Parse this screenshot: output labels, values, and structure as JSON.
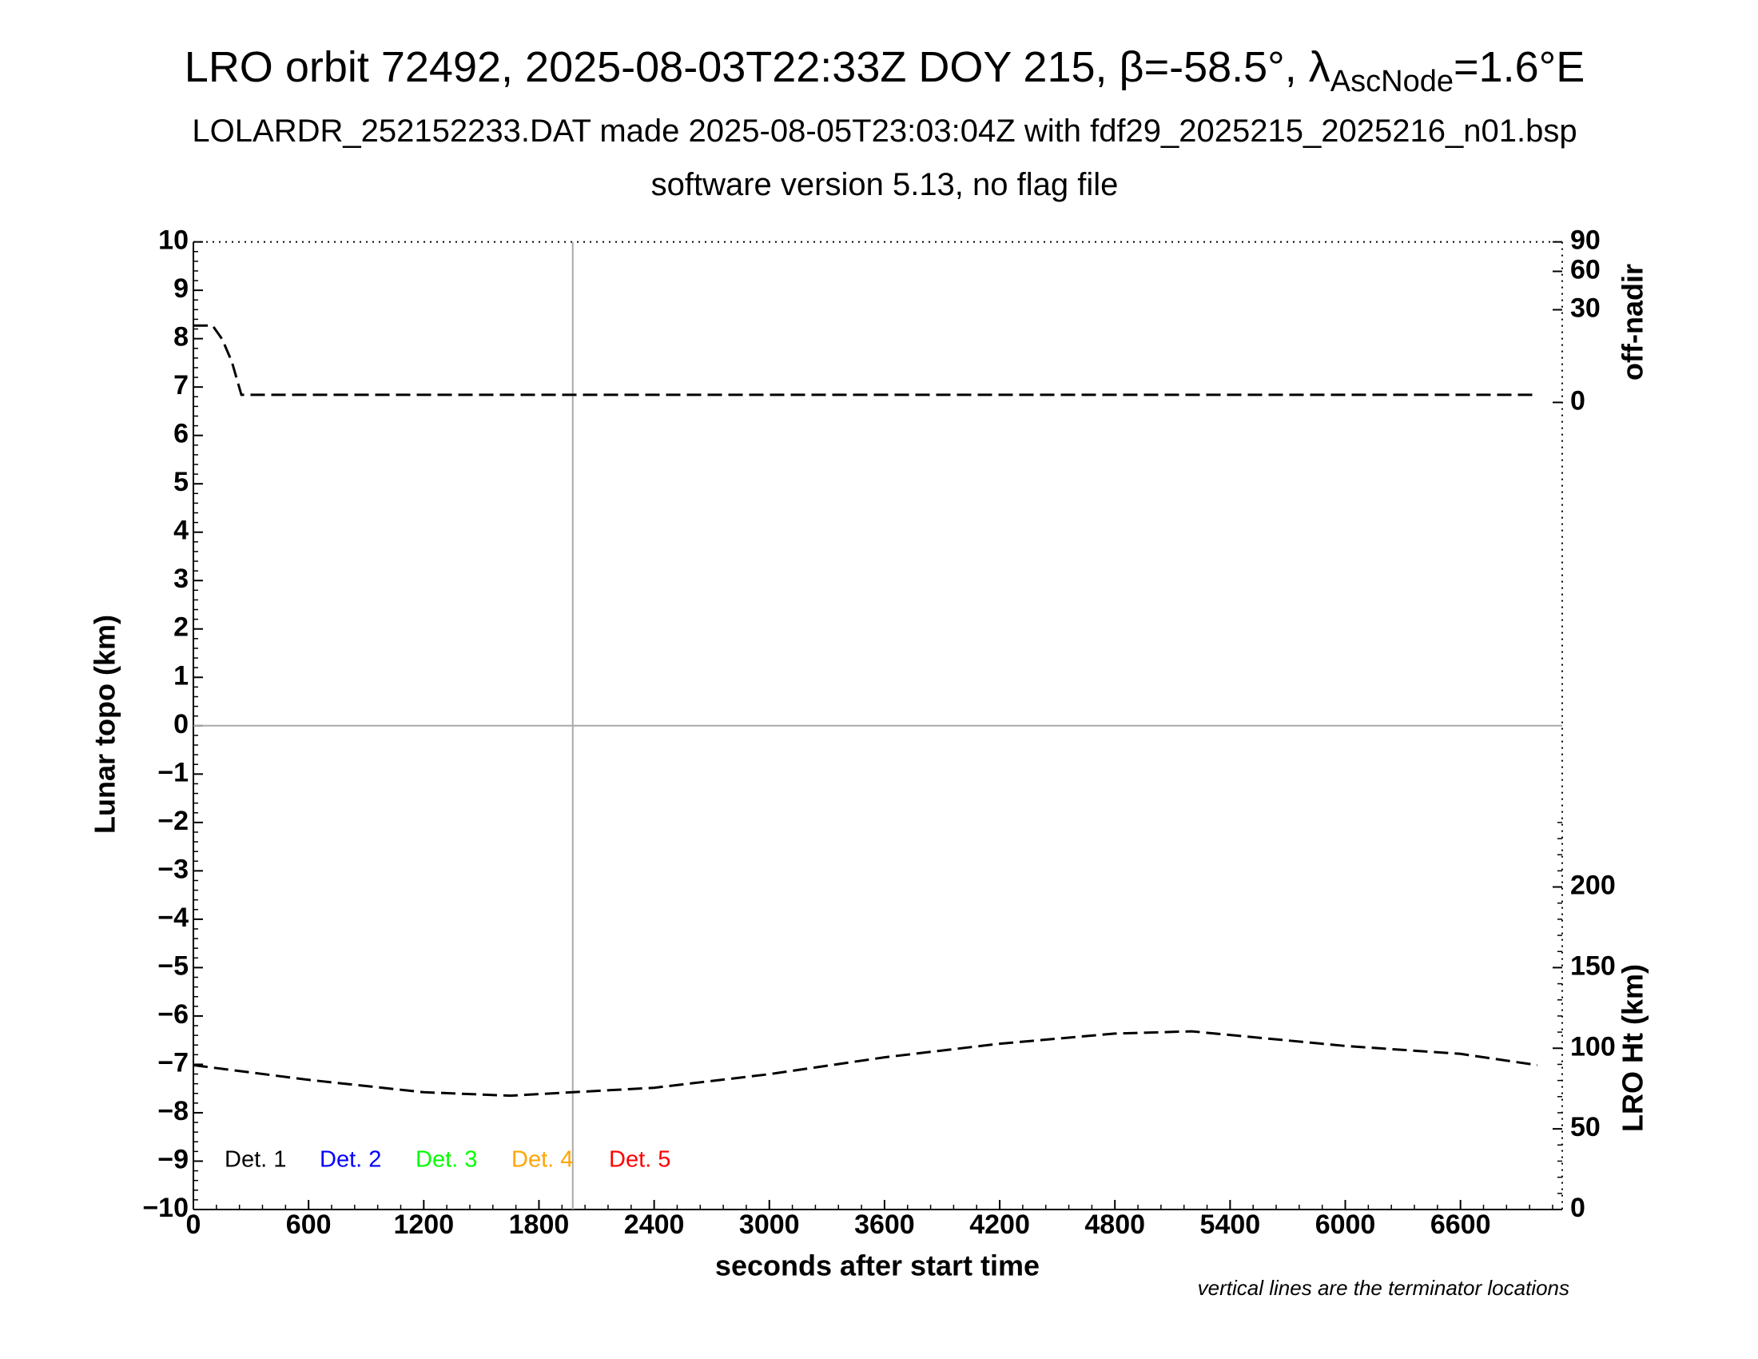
{
  "chart_data": {
    "type": "line",
    "title_parts": {
      "main": "LRO orbit 72492, 2025-08-03T22:33Z DOY 215, β=-58.5°, λ",
      "sub": "AscNode",
      "end": "=1.6°E"
    },
    "subtitle": "LOLARDR_252152233.DAT made 2025-08-05T23:03:04Z with fdf29_2025215_2025216_n01.bsp",
    "subtitle2": "software version 5.13, no flag file",
    "xlabel": "seconds after start time",
    "ylabel": "Lunar topo (km)",
    "y2label": "off-nadir",
    "y3label": "LRO Ht (km)",
    "note": "vertical lines are the terminator locations",
    "legend": [
      {
        "name": "Det. 1",
        "color": "#000000"
      },
      {
        "name": "Det. 2",
        "color": "#0000ff"
      },
      {
        "name": "Det. 3",
        "color": "#00ff00"
      },
      {
        "name": "Det. 4",
        "color": "#ffa500"
      },
      {
        "name": "Det. 5",
        "color": "#ff0000"
      }
    ],
    "xlim": [
      0,
      7130
    ],
    "xticks": [
      0,
      600,
      1200,
      1800,
      2400,
      3000,
      3600,
      4200,
      4800,
      5400,
      6000,
      6600
    ],
    "ylim": [
      -10,
      10
    ],
    "yticks": [
      {
        "value": -10,
        "label": "−10"
      },
      {
        "value": -9,
        "label": "−9"
      },
      {
        "value": -8,
        "label": "−8"
      },
      {
        "value": -7,
        "label": "−7"
      },
      {
        "value": -6,
        "label": "−6"
      },
      {
        "value": -5,
        "label": "−5"
      },
      {
        "value": -4,
        "label": "−4"
      },
      {
        "value": -3,
        "label": "−3"
      },
      {
        "value": -2,
        "label": "−2"
      },
      {
        "value": -1,
        "label": "−1"
      },
      0,
      1,
      2,
      3,
      4,
      5,
      6,
      7,
      8,
      9,
      10
    ],
    "y2lim": [
      0,
      90
    ],
    "y2scale": "sqrt",
    "y2ticks": [
      0,
      30,
      60,
      90
    ],
    "y3lim": [
      0,
      600
    ],
    "y3ticks": [
      0,
      50,
      100,
      150,
      200
    ],
    "terminators": [
      1976
    ],
    "series": [
      {
        "axis": "y2",
        "color": "#000000",
        "dash": true,
        "x": [
          0,
          100,
          150,
          200,
          250,
          7000
        ],
        "values": [
          20.6,
          20.6,
          14,
          5.8,
          0.2,
          0.2
        ]
      },
      {
        "axis": "y3",
        "color": "#000000",
        "dash": true,
        "x": [
          0,
          600,
          1200,
          1650,
          2400,
          3000,
          3600,
          4200,
          4800,
          5200,
          6000,
          6600,
          7000
        ],
        "values": [
          89.5,
          80.4,
          72.7,
          70.6,
          75.5,
          83.9,
          94.4,
          102.8,
          109.1,
          110.5,
          101.4,
          96.5,
          89.5
        ]
      }
    ]
  }
}
